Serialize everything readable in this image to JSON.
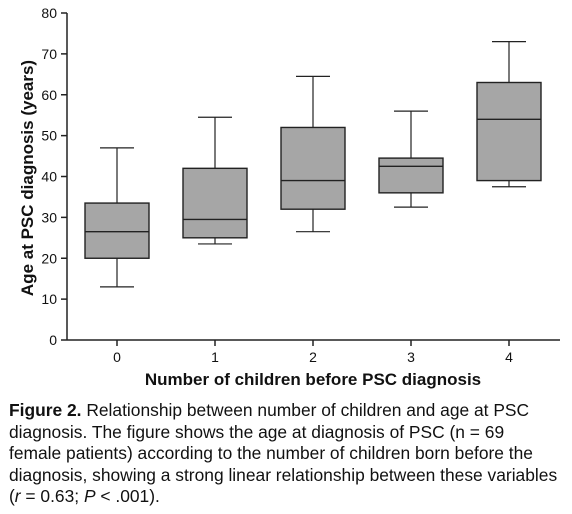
{
  "chart_data": {
    "type": "box",
    "xlabel": "Number of children before PSC diagnosis",
    "ylabel": "Age at PSC diagnosis (years)",
    "ylim": [
      0,
      80
    ],
    "yticks": [
      0,
      10,
      20,
      30,
      40,
      50,
      60,
      70,
      80
    ],
    "categories": [
      "0",
      "1",
      "2",
      "3",
      "4"
    ],
    "boxes": [
      {
        "category": "0",
        "min": 13,
        "q1": 20,
        "median": 26.5,
        "q3": 33.5,
        "max": 47
      },
      {
        "category": "1",
        "min": 23.5,
        "q1": 25,
        "median": 29.5,
        "q3": 42,
        "max": 54.5
      },
      {
        "category": "2",
        "min": 26.5,
        "q1": 32,
        "median": 39,
        "q3": 52,
        "max": 64.5
      },
      {
        "category": "3",
        "min": 32.5,
        "q1": 36,
        "median": 42.5,
        "q3": 44.5,
        "max": 56
      },
      {
        "category": "4",
        "min": 37.5,
        "q1": 39,
        "median": 54,
        "q3": 63,
        "max": 73
      }
    ],
    "box_color": "#a6a6a6",
    "line_color": "#222222",
    "grid": false,
    "legend": "none"
  },
  "caption": {
    "label": "Figure 2.",
    "text_before_r": " Relationship between number of children and age at PSC diagnosis. The figure shows the age at diagnosis of PSC (n = 69 female patients) according to the number of children born before the diagnosis, showing a strong linear relationship between these variables (",
    "r_symbol": "r",
    "r_value": " = 0.63; ",
    "p_symbol": "P",
    "p_value": " < .001)."
  }
}
